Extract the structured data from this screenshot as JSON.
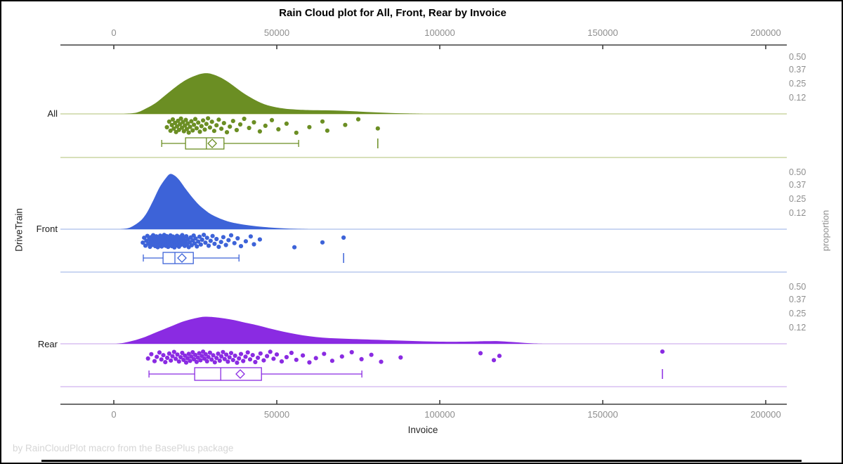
{
  "title": "Rain Cloud plot for All, Front, Rear by Invoice",
  "footnote": "by RainCloudPlot macro from the BasePlus package",
  "axes": {
    "x_label": "Invoice",
    "y_left_label": "DriveTrain",
    "y_right_label": "proportion",
    "x_tick_labels": [
      "0",
      "50000",
      "100000",
      "150000",
      "200000"
    ],
    "proportion_tick_labels": [
      "0.50",
      "0.37",
      "0.25",
      "0.12"
    ]
  },
  "chart_data": {
    "type": "raincloud",
    "x_axis": {
      "label": "Invoice",
      "range": [
        0,
        200000
      ],
      "ticks": [
        0,
        50000,
        100000,
        150000,
        200000
      ]
    },
    "proportion_axis": {
      "label": "proportion",
      "ticks": [
        0.5,
        0.37,
        0.25,
        0.12
      ]
    },
    "group_axis_label": "DriveTrain",
    "groups": [
      {
        "name": "All",
        "color": "#6b8e23",
        "light_color": "#cbd6a3",
        "density": [
          [
            3000,
            0
          ],
          [
            7000,
            0.012
          ],
          [
            10000,
            0.05
          ],
          [
            13000,
            0.1
          ],
          [
            16000,
            0.17
          ],
          [
            19000,
            0.24
          ],
          [
            22000,
            0.3
          ],
          [
            25000,
            0.34
          ],
          [
            27500,
            0.36
          ],
          [
            30000,
            0.355
          ],
          [
            33000,
            0.32
          ],
          [
            36000,
            0.265
          ],
          [
            39000,
            0.2
          ],
          [
            42000,
            0.145
          ],
          [
            45000,
            0.1
          ],
          [
            48000,
            0.07
          ],
          [
            52000,
            0.048
          ],
          [
            56000,
            0.038
          ],
          [
            60000,
            0.034
          ],
          [
            65000,
            0.032
          ],
          [
            70000,
            0.028
          ],
          [
            75000,
            0.021
          ],
          [
            80000,
            0.014
          ],
          [
            85000,
            0.008
          ],
          [
            90000,
            0.004
          ],
          [
            95000,
            0
          ]
        ],
        "box": {
          "whisker_low": 14700,
          "q1": 22000,
          "median": 28400,
          "mean": 30200,
          "q3": 33800,
          "whisker_high": 56700,
          "outliers": [
            81000
          ]
        },
        "points": [
          16300,
          17000,
          17400,
          17800,
          18100,
          18400,
          18800,
          19100,
          19400,
          19700,
          20000,
          20300,
          20600,
          20900,
          21200,
          21500,
          21800,
          22100,
          22400,
          22700,
          23000,
          23400,
          23800,
          24200,
          24600,
          25000,
          25400,
          25900,
          26400,
          26900,
          27400,
          27900,
          28400,
          28900,
          29500,
          30100,
          30800,
          31500,
          32200,
          33000,
          33800,
          34700,
          35600,
          36600,
          37700,
          38800,
          40000,
          41500,
          43000,
          44800,
          46500,
          48500,
          50500,
          53000,
          56000,
          60000,
          64000,
          65500,
          71000,
          75000,
          81000
        ]
      },
      {
        "name": "Front",
        "color": "#3d63d8",
        "light_color": "#b9c8ee",
        "density": [
          [
            2000,
            0
          ],
          [
            5000,
            0.015
          ],
          [
            8000,
            0.07
          ],
          [
            10000,
            0.14
          ],
          [
            12000,
            0.25
          ],
          [
            14000,
            0.37
          ],
          [
            16000,
            0.455
          ],
          [
            17200,
            0.49
          ],
          [
            18500,
            0.48
          ],
          [
            20000,
            0.44
          ],
          [
            22000,
            0.36
          ],
          [
            24000,
            0.285
          ],
          [
            26000,
            0.22
          ],
          [
            28000,
            0.17
          ],
          [
            30000,
            0.13
          ],
          [
            33000,
            0.09
          ],
          [
            36000,
            0.062
          ],
          [
            40000,
            0.04
          ],
          [
            44000,
            0.025
          ],
          [
            48000,
            0.015
          ],
          [
            52000,
            0.008
          ],
          [
            56000,
            0.003
          ],
          [
            60000,
            0
          ]
        ],
        "box": {
          "whisker_low": 9050,
          "q1": 15100,
          "median": 18750,
          "mean": 20900,
          "q3": 24400,
          "whisker_high": 38400,
          "outliers": [
            70500
          ]
        },
        "points": [
          8900,
          9300,
          9700,
          10000,
          10300,
          10600,
          10900,
          11100,
          11300,
          11500,
          11700,
          11900,
          12100,
          12300,
          12500,
          12700,
          12900,
          13050,
          13200,
          13350,
          13500,
          13650,
          13800,
          13950,
          14100,
          14250,
          14400,
          14550,
          14700,
          14850,
          15000,
          15150,
          15300,
          15450,
          15600,
          15750,
          15900,
          16050,
          16200,
          16350,
          16500,
          16650,
          16800,
          16950,
          17100,
          17250,
          17400,
          17550,
          17700,
          17850,
          18000,
          18150,
          18300,
          18450,
          18600,
          18750,
          18900,
          19050,
          19200,
          19400,
          19600,
          19800,
          20000,
          20200,
          20400,
          20600,
          20800,
          21000,
          21250,
          21500,
          21750,
          22000,
          22250,
          22500,
          22750,
          23000,
          23300,
          23600,
          23900,
          24200,
          24500,
          24800,
          25100,
          25500,
          25900,
          26300,
          26700,
          27100,
          27600,
          28100,
          28600,
          29100,
          29700,
          30300,
          30900,
          31500,
          32200,
          32900,
          33600,
          34400,
          35200,
          36000,
          37000,
          38000,
          39000,
          40500,
          42000,
          43000,
          44800,
          55400,
          64000,
          70500
        ]
      },
      {
        "name": "Rear",
        "color": "#8a2be2",
        "light_color": "#d9bff2",
        "density": [
          [
            500,
            0
          ],
          [
            3000,
            0.008
          ],
          [
            6000,
            0.028
          ],
          [
            9000,
            0.055
          ],
          [
            12000,
            0.09
          ],
          [
            15000,
            0.125
          ],
          [
            18000,
            0.16
          ],
          [
            21000,
            0.195
          ],
          [
            24000,
            0.22
          ],
          [
            27000,
            0.238
          ],
          [
            29000,
            0.24
          ],
          [
            31000,
            0.236
          ],
          [
            34000,
            0.225
          ],
          [
            37000,
            0.21
          ],
          [
            40000,
            0.19
          ],
          [
            44000,
            0.165
          ],
          [
            48000,
            0.135
          ],
          [
            52000,
            0.108
          ],
          [
            56000,
            0.085
          ],
          [
            60000,
            0.067
          ],
          [
            64000,
            0.055
          ],
          [
            68000,
            0.048
          ],
          [
            72000,
            0.044
          ],
          [
            76000,
            0.04
          ],
          [
            80000,
            0.036
          ],
          [
            85000,
            0.031
          ],
          [
            90000,
            0.026
          ],
          [
            95000,
            0.022
          ],
          [
            100000,
            0.019
          ],
          [
            105000,
            0.018
          ],
          [
            110000,
            0.02
          ],
          [
            114000,
            0.023
          ],
          [
            118000,
            0.024
          ],
          [
            122000,
            0.016
          ],
          [
            126000,
            0.008
          ],
          [
            130000,
            0.002
          ],
          [
            132000,
            0
          ]
        ],
        "box": {
          "whisker_low": 10800,
          "q1": 24800,
          "median": 32800,
          "mean": 38800,
          "q3": 45300,
          "whisker_high": 76100,
          "outliers": [
            168300
          ]
        },
        "points": [
          10500,
          11500,
          12500,
          13200,
          14000,
          14600,
          15200,
          15800,
          16400,
          17000,
          17500,
          18000,
          18500,
          19000,
          19500,
          20000,
          20500,
          21000,
          21400,
          21800,
          22200,
          22600,
          23000,
          23400,
          23800,
          24200,
          24600,
          25000,
          25400,
          25800,
          26200,
          26600,
          27000,
          27400,
          27800,
          28200,
          28600,
          29000,
          29500,
          30000,
          30500,
          31000,
          31500,
          32000,
          32500,
          33000,
          33500,
          34000,
          34500,
          35000,
          35500,
          36000,
          36600,
          37200,
          37800,
          38400,
          39000,
          39700,
          40400,
          41100,
          41800,
          42600,
          43400,
          44200,
          45000,
          46000,
          47000,
          48000,
          49000,
          50000,
          51500,
          53000,
          54500,
          56000,
          58000,
          60000,
          62000,
          64500,
          67000,
          70000,
          73000,
          76000,
          79000,
          82000,
          88000,
          112500,
          116600,
          118300,
          168300
        ]
      }
    ]
  }
}
